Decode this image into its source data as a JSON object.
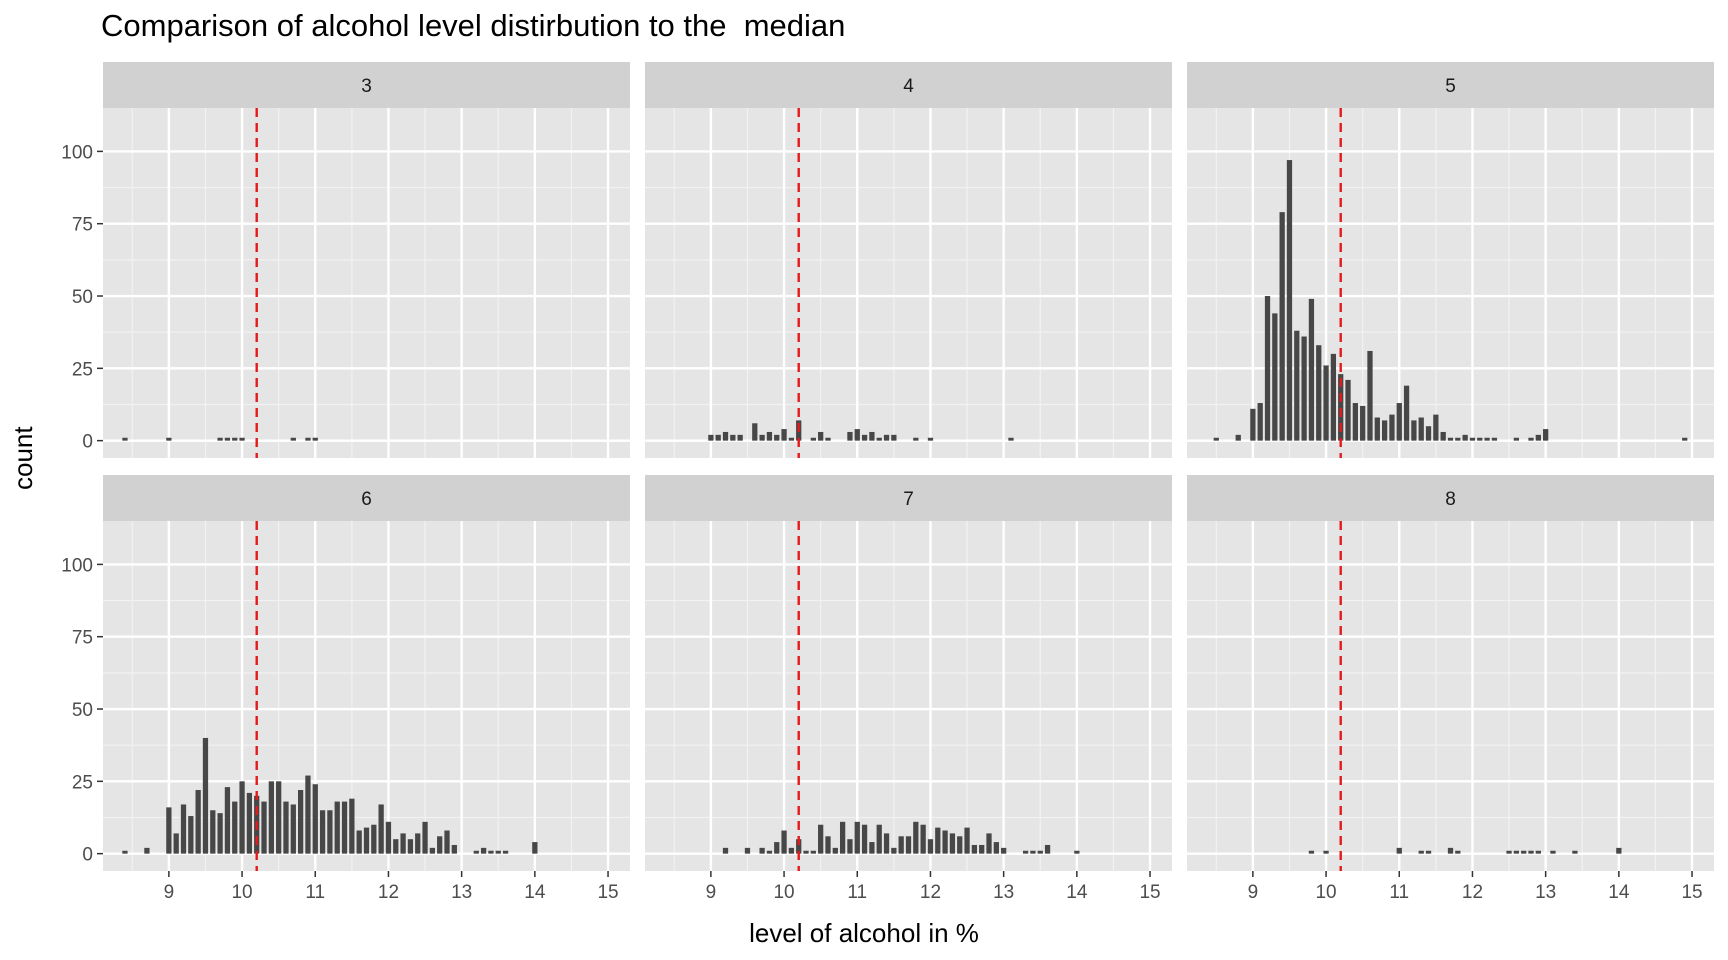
{
  "chart_data": {
    "type": "bar",
    "title": "Comparison of alcohol level distirbution to the  median",
    "xlabel": "level of alcohol in %",
    "ylabel": "count",
    "xlim": [
      8.1,
      15.3
    ],
    "ylim": [
      -6,
      115
    ],
    "x_ticks": [
      9,
      10,
      11,
      12,
      13,
      14,
      15
    ],
    "y_ticks": [
      0,
      25,
      50,
      75,
      100
    ],
    "median_line": 10.2,
    "median_color": "#e41a1c",
    "bar_color": "#474747",
    "panel_bg": "#e5e5e5",
    "strip_bg": "#d1d1d1",
    "grid": true,
    "layout": "2 rows x 3 facets",
    "facets": [
      {
        "label": "3",
        "bars": [
          [
            8.4,
            1
          ],
          [
            9.0,
            1
          ],
          [
            9.7,
            1
          ],
          [
            9.8,
            1
          ],
          [
            9.9,
            1
          ],
          [
            10.0,
            1
          ],
          [
            10.7,
            1
          ],
          [
            10.9,
            1
          ],
          [
            11.0,
            1
          ]
        ]
      },
      {
        "label": "4",
        "bars": [
          [
            9.0,
            2
          ],
          [
            9.1,
            2
          ],
          [
            9.2,
            3
          ],
          [
            9.3,
            2
          ],
          [
            9.4,
            2
          ],
          [
            9.6,
            6
          ],
          [
            9.7,
            2
          ],
          [
            9.8,
            3
          ],
          [
            9.9,
            2
          ],
          [
            10.0,
            4
          ],
          [
            10.1,
            1
          ],
          [
            10.2,
            7
          ],
          [
            10.4,
            1
          ],
          [
            10.5,
            3
          ],
          [
            10.6,
            1
          ],
          [
            10.9,
            3
          ],
          [
            11.0,
            4
          ],
          [
            11.1,
            2
          ],
          [
            11.2,
            3
          ],
          [
            11.3,
            1
          ],
          [
            11.4,
            2
          ],
          [
            11.5,
            2
          ],
          [
            11.8,
            1
          ],
          [
            12.0,
            1
          ],
          [
            13.1,
            1
          ]
        ]
      },
      {
        "label": "5",
        "bars": [
          [
            8.5,
            1
          ],
          [
            8.8,
            2
          ],
          [
            9.0,
            11
          ],
          [
            9.1,
            13
          ],
          [
            9.2,
            50
          ],
          [
            9.3,
            44
          ],
          [
            9.4,
            79
          ],
          [
            9.5,
            97
          ],
          [
            9.6,
            38
          ],
          [
            9.7,
            36
          ],
          [
            9.8,
            49
          ],
          [
            9.9,
            33
          ],
          [
            10.0,
            26
          ],
          [
            10.1,
            30
          ],
          [
            10.2,
            23
          ],
          [
            10.3,
            21
          ],
          [
            10.4,
            13
          ],
          [
            10.5,
            12
          ],
          [
            10.6,
            31
          ],
          [
            10.7,
            8
          ],
          [
            10.8,
            7
          ],
          [
            10.9,
            9
          ],
          [
            11.0,
            13
          ],
          [
            11.1,
            19
          ],
          [
            11.2,
            7
          ],
          [
            11.3,
            8
          ],
          [
            11.4,
            5
          ],
          [
            11.5,
            9
          ],
          [
            11.6,
            3
          ],
          [
            11.7,
            1
          ],
          [
            11.8,
            1
          ],
          [
            11.9,
            2
          ],
          [
            12.0,
            1
          ],
          [
            12.1,
            1
          ],
          [
            12.2,
            1
          ],
          [
            12.3,
            1
          ],
          [
            12.6,
            1
          ],
          [
            12.8,
            1
          ],
          [
            12.9,
            2
          ],
          [
            13.0,
            4
          ],
          [
            14.9,
            1
          ]
        ]
      },
      {
        "label": "6",
        "bars": [
          [
            8.4,
            1
          ],
          [
            8.7,
            2
          ],
          [
            9.0,
            16
          ],
          [
            9.1,
            7
          ],
          [
            9.2,
            17
          ],
          [
            9.3,
            13
          ],
          [
            9.4,
            22
          ],
          [
            9.5,
            40
          ],
          [
            9.6,
            15
          ],
          [
            9.7,
            14
          ],
          [
            9.8,
            23
          ],
          [
            9.9,
            18
          ],
          [
            10.0,
            25
          ],
          [
            10.1,
            21
          ],
          [
            10.2,
            20
          ],
          [
            10.3,
            18
          ],
          [
            10.4,
            25
          ],
          [
            10.5,
            25
          ],
          [
            10.6,
            18
          ],
          [
            10.7,
            17
          ],
          [
            10.8,
            22
          ],
          [
            10.9,
            27
          ],
          [
            11.0,
            24
          ],
          [
            11.1,
            15
          ],
          [
            11.2,
            15
          ],
          [
            11.3,
            18
          ],
          [
            11.4,
            18
          ],
          [
            11.5,
            19
          ],
          [
            11.6,
            8
          ],
          [
            11.7,
            9
          ],
          [
            11.8,
            10
          ],
          [
            11.9,
            17
          ],
          [
            12.0,
            11
          ],
          [
            12.1,
            5
          ],
          [
            12.2,
            7
          ],
          [
            12.3,
            5
          ],
          [
            12.4,
            7
          ],
          [
            12.5,
            11
          ],
          [
            12.6,
            2
          ],
          [
            12.7,
            6
          ],
          [
            12.8,
            8
          ],
          [
            12.9,
            3
          ],
          [
            13.2,
            1
          ],
          [
            13.3,
            2
          ],
          [
            13.4,
            1
          ],
          [
            13.5,
            1
          ],
          [
            13.6,
            1
          ],
          [
            14.0,
            4
          ]
        ]
      },
      {
        "label": "7",
        "bars": [
          [
            9.2,
            2
          ],
          [
            9.5,
            2
          ],
          [
            9.7,
            2
          ],
          [
            9.8,
            1
          ],
          [
            9.9,
            4
          ],
          [
            10.0,
            8
          ],
          [
            10.1,
            2
          ],
          [
            10.2,
            5
          ],
          [
            10.3,
            1
          ],
          [
            10.4,
            1
          ],
          [
            10.5,
            10
          ],
          [
            10.6,
            6
          ],
          [
            10.7,
            2
          ],
          [
            10.8,
            11
          ],
          [
            10.9,
            5
          ],
          [
            11.0,
            11
          ],
          [
            11.1,
            10
          ],
          [
            11.2,
            4
          ],
          [
            11.3,
            10
          ],
          [
            11.4,
            7
          ],
          [
            11.5,
            2
          ],
          [
            11.6,
            6
          ],
          [
            11.7,
            6
          ],
          [
            11.8,
            11
          ],
          [
            11.9,
            10
          ],
          [
            12.0,
            5
          ],
          [
            12.1,
            9
          ],
          [
            12.2,
            8
          ],
          [
            12.3,
            7
          ],
          [
            12.4,
            6
          ],
          [
            12.5,
            9
          ],
          [
            12.6,
            3
          ],
          [
            12.7,
            3
          ],
          [
            12.8,
            7
          ],
          [
            12.9,
            4
          ],
          [
            13.0,
            2
          ],
          [
            13.3,
            1
          ],
          [
            13.4,
            1
          ],
          [
            13.5,
            1
          ],
          [
            13.6,
            3
          ],
          [
            14.0,
            1
          ]
        ]
      },
      {
        "label": "8",
        "bars": [
          [
            9.8,
            1
          ],
          [
            10.0,
            1
          ],
          [
            11.0,
            2
          ],
          [
            11.3,
            1
          ],
          [
            11.4,
            1
          ],
          [
            11.7,
            2
          ],
          [
            11.8,
            1
          ],
          [
            12.5,
            1
          ],
          [
            12.6,
            1
          ],
          [
            12.7,
            1
          ],
          [
            12.8,
            1
          ],
          [
            12.9,
            1
          ],
          [
            13.1,
            1
          ],
          [
            13.4,
            1
          ],
          [
            14.0,
            2
          ]
        ]
      }
    ]
  }
}
